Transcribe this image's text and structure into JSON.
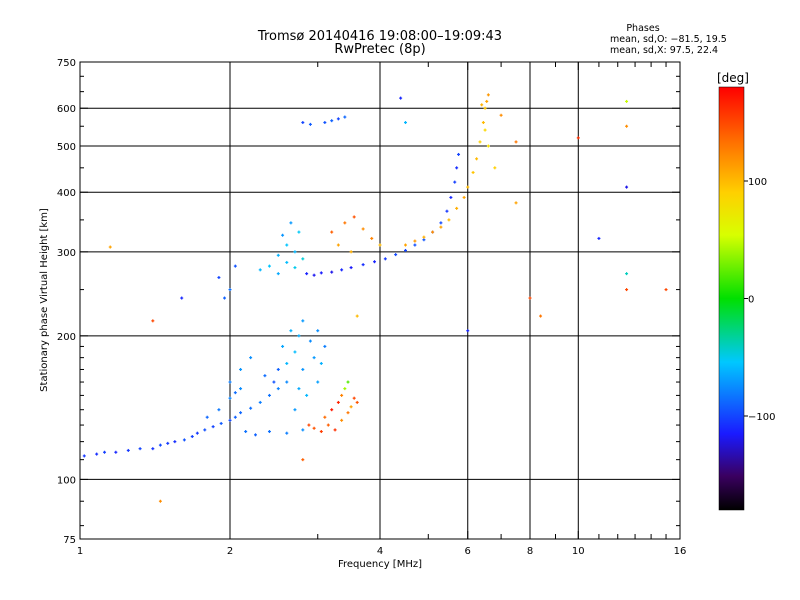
{
  "chart_data": {
    "type": "scatter",
    "title": "Tromsø 20140416 19:08:00–19:09:43",
    "subtitle": "RwPretec (8p)",
    "xlabel": "Frequency [MHz]",
    "ylabel": "Stationary phase Virtual Height [km]",
    "x_scale": "log",
    "y_scale": "log",
    "xlim": [
      1,
      16
    ],
    "ylim": [
      75,
      750
    ],
    "grid": true,
    "x_major_ticks": [
      1,
      2,
      4,
      6,
      8,
      10,
      16
    ],
    "x_minor_ticks": [
      3,
      5,
      7,
      9,
      11,
      12,
      13,
      14,
      15
    ],
    "y_ticks": [
      75,
      100,
      200,
      300,
      400,
      500,
      600,
      750
    ],
    "x_tick_labels": [
      "1",
      "2",
      "4",
      "6",
      "8",
      "10",
      "16"
    ],
    "y_tick_labels": [
      "75",
      "100",
      "200",
      "300",
      "400",
      "500",
      "600",
      "750"
    ],
    "phases_block": {
      "heading": "Phases",
      "line_o": "mean, sd,O: −81.5, 19.5",
      "line_x": "mean, sd,X:  97.5, 22.4"
    },
    "colorbar": {
      "unit": "[deg]",
      "range": [
        -180,
        180
      ],
      "ticks": [
        100,
        0,
        -100
      ],
      "tick_labels": [
        "100",
        "0",
        "−100"
      ]
    },
    "series": [
      {
        "values": [
          [
            1.02,
            112,
            -105
          ],
          [
            1.08,
            113,
            -108
          ],
          [
            1.12,
            114,
            -102
          ],
          [
            1.18,
            114,
            -110
          ],
          [
            1.25,
            115,
            -104
          ],
          [
            1.32,
            116,
            -100
          ],
          [
            1.4,
            116,
            -106
          ],
          [
            1.45,
            118,
            -98
          ],
          [
            1.5,
            119,
            -103
          ],
          [
            1.55,
            120,
            -108
          ],
          [
            1.62,
            121,
            -95
          ],
          [
            1.68,
            123,
            -101
          ],
          [
            1.72,
            125,
            -104
          ],
          [
            1.78,
            127,
            -96
          ],
          [
            1.85,
            129,
            -100
          ],
          [
            1.92,
            131,
            -92
          ],
          [
            2.0,
            133,
            -98
          ],
          [
            2.05,
            135,
            -90
          ],
          [
            2.1,
            138,
            -88
          ],
          [
            2.2,
            141,
            -85
          ],
          [
            2.3,
            145,
            -80
          ],
          [
            2.4,
            150,
            -84
          ],
          [
            2.5,
            155,
            -78
          ],
          [
            2.6,
            160,
            -76
          ],
          [
            1.8,
            135,
            -88
          ],
          [
            1.9,
            140,
            -82
          ],
          [
            2.0,
            148,
            -78
          ],
          [
            2.1,
            155,
            -75
          ],
          [
            2.0,
            160,
            -80
          ],
          [
            2.1,
            170,
            -72
          ],
          [
            2.2,
            180,
            -74
          ],
          [
            2.05,
            152,
            -86
          ],
          [
            2.15,
            126,
            -84
          ],
          [
            2.25,
            124,
            -90
          ],
          [
            2.4,
            126,
            -85
          ],
          [
            2.6,
            125,
            -80
          ],
          [
            2.8,
            127,
            -74
          ],
          [
            2.7,
            140,
            -70
          ],
          [
            2.75,
            155,
            -65
          ],
          [
            2.8,
            170,
            -72
          ],
          [
            2.6,
            175,
            -60
          ],
          [
            2.7,
            185,
            -58
          ],
          [
            2.75,
            200,
            -64
          ],
          [
            2.8,
            215,
            -70
          ],
          [
            2.65,
            205,
            -62
          ],
          [
            2.55,
            190,
            -66
          ],
          [
            2.9,
            195,
            -75
          ],
          [
            2.95,
            180,
            -70
          ],
          [
            3.0,
            160,
            -68
          ],
          [
            3.05,
            175,
            -62
          ],
          [
            3.0,
            205,
            -74
          ],
          [
            3.1,
            190,
            -80
          ],
          [
            2.5,
            170,
            -90
          ],
          [
            2.45,
            160,
            -95
          ],
          [
            2.35,
            165,
            -86
          ],
          [
            2.85,
            150,
            -60
          ],
          [
            2.88,
            130,
            150
          ],
          [
            2.95,
            128,
            145
          ],
          [
            3.05,
            126,
            155
          ],
          [
            3.15,
            130,
            140
          ],
          [
            3.25,
            127,
            160
          ],
          [
            3.35,
            133,
            120
          ],
          [
            3.45,
            138,
            130
          ],
          [
            3.5,
            142,
            110
          ],
          [
            3.55,
            148,
            150
          ],
          [
            3.3,
            145,
            165
          ],
          [
            3.2,
            140,
            170
          ],
          [
            3.1,
            135,
            135
          ],
          [
            3.4,
            155,
            40
          ],
          [
            3.45,
            160,
            20
          ],
          [
            3.6,
            145,
            145
          ],
          [
            3.35,
            150,
            125
          ],
          [
            2.3,
            275,
            -60
          ],
          [
            2.4,
            280,
            -55
          ],
          [
            2.5,
            270,
            -65
          ],
          [
            2.6,
            285,
            -58
          ],
          [
            2.7,
            278,
            -50
          ],
          [
            2.8,
            290,
            -45
          ],
          [
            2.5,
            295,
            -62
          ],
          [
            2.6,
            310,
            -55
          ],
          [
            2.7,
            300,
            -60
          ],
          [
            2.75,
            330,
            -52
          ],
          [
            2.65,
            345,
            -70
          ],
          [
            2.55,
            325,
            -72
          ],
          [
            2.85,
            270,
            -112
          ],
          [
            2.95,
            268,
            -118
          ],
          [
            3.05,
            271,
            -114
          ],
          [
            3.2,
            272,
            -120
          ],
          [
            3.35,
            275,
            -110
          ],
          [
            3.5,
            278,
            -116
          ],
          [
            3.7,
            282,
            -108
          ],
          [
            3.9,
            286,
            -112
          ],
          [
            4.1,
            290,
            -104
          ],
          [
            4.3,
            296,
            -98
          ],
          [
            4.5,
            302,
            -100
          ],
          [
            4.7,
            310,
            -96
          ],
          [
            4.9,
            318,
            -94
          ],
          [
            5.1,
            330,
            -100
          ],
          [
            5.3,
            345,
            -98
          ],
          [
            5.45,
            365,
            -105
          ],
          [
            5.55,
            390,
            -110
          ],
          [
            5.65,
            420,
            -102
          ],
          [
            5.7,
            450,
            -108
          ],
          [
            5.75,
            480,
            -100
          ],
          [
            1.95,
            240,
            -90
          ],
          [
            2.0,
            250,
            -85
          ],
          [
            2.05,
            280,
            -95
          ],
          [
            1.9,
            265,
            -100
          ],
          [
            1.6,
            240,
            -110
          ],
          [
            3.1,
            560,
            -95
          ],
          [
            3.2,
            565,
            -90
          ],
          [
            3.3,
            570,
            -100
          ],
          [
            3.4,
            575,
            -88
          ],
          [
            2.8,
            560,
            -100
          ],
          [
            2.9,
            555,
            -92
          ],
          [
            4.4,
            630,
            -110
          ],
          [
            3.2,
            330,
            140
          ],
          [
            3.4,
            345,
            130
          ],
          [
            3.55,
            355,
            145
          ],
          [
            3.7,
            335,
            120
          ],
          [
            3.85,
            320,
            125
          ],
          [
            4.0,
            310,
            100
          ],
          [
            3.3,
            310,
            110
          ],
          [
            3.5,
            300,
            105
          ],
          [
            4.5,
            310,
            110
          ],
          [
            4.7,
            316,
            115
          ],
          [
            4.9,
            322,
            105
          ],
          [
            5.1,
            330,
            120
          ],
          [
            5.3,
            338,
            110
          ],
          [
            5.5,
            350,
            100
          ],
          [
            5.7,
            370,
            105
          ],
          [
            5.9,
            390,
            110
          ],
          [
            6.0,
            410,
            100
          ],
          [
            6.15,
            440,
            95
          ],
          [
            6.25,
            470,
            100
          ],
          [
            6.35,
            510,
            90
          ],
          [
            6.45,
            560,
            100
          ],
          [
            6.5,
            600,
            95
          ],
          [
            6.55,
            620,
            110
          ],
          [
            6.6,
            640,
            115
          ],
          [
            6.4,
            610,
            105
          ],
          [
            6.5,
            540,
            85
          ],
          [
            6.6,
            500,
            80
          ],
          [
            7.0,
            580,
            120
          ],
          [
            10.0,
            520,
            160
          ],
          [
            12.5,
            620,
            50
          ],
          [
            12.5,
            550,
            120
          ],
          [
            12.5,
            410,
            -120
          ],
          [
            12.5,
            270,
            -40
          ],
          [
            12.5,
            250,
            150
          ],
          [
            11.0,
            320,
            -110
          ],
          [
            15.0,
            250,
            150
          ],
          [
            8.0,
            240,
            150
          ],
          [
            7.5,
            510,
            130
          ],
          [
            6.0,
            205,
            -110
          ],
          [
            4.5,
            560,
            -60
          ],
          [
            2.8,
            110,
            140
          ],
          [
            1.45,
            90,
            120
          ],
          [
            1.4,
            215,
            150
          ],
          [
            1.15,
            307,
            110
          ],
          [
            6.8,
            450,
            90
          ],
          [
            7.5,
            380,
            110
          ],
          [
            8.4,
            220,
            130
          ],
          [
            3.6,
            220,
            100
          ]
        ]
      }
    ]
  }
}
